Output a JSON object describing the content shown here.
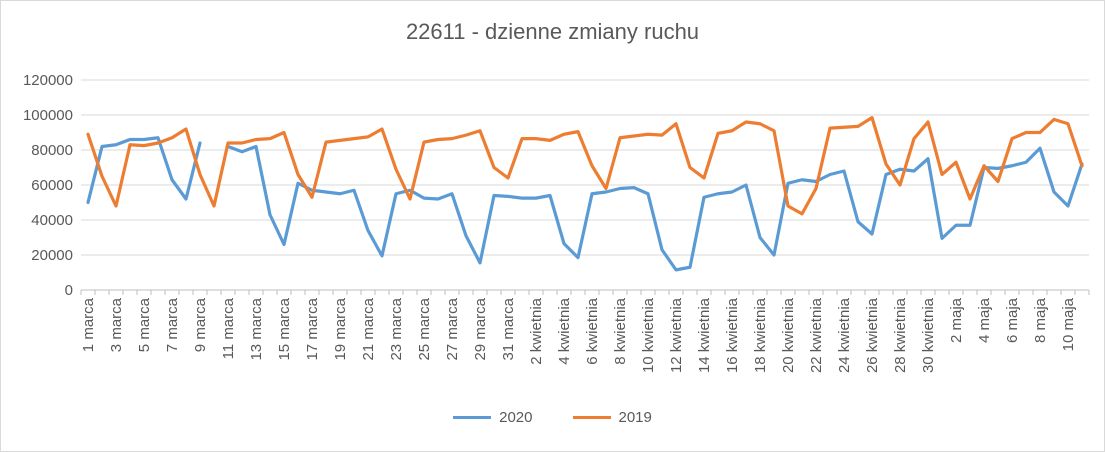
{
  "chart_data": {
    "type": "line",
    "title": "22611 - dzienne zmiany ruchu",
    "xlabel": "",
    "ylabel": "",
    "ylim": [
      0,
      120000
    ],
    "yticks": [
      "0",
      "20000",
      "40000",
      "60000",
      "80000",
      "100000",
      "120000"
    ],
    "grid": true,
    "legend_position": "bottom",
    "categories": [
      "1 marca",
      "2 marca",
      "3 marca",
      "4 marca",
      "5 marca",
      "6 marca",
      "7 marca",
      "8 marca",
      "9 marca",
      "10 marca",
      "11 marca",
      "12 marca",
      "13 marca",
      "14 marca",
      "15 marca",
      "16 marca",
      "17 marca",
      "18 marca",
      "19 marca",
      "20 marca",
      "21 marca",
      "22 marca",
      "23 marca",
      "24 marca",
      "25 marca",
      "26 marca",
      "27 marca",
      "28 marca",
      "29 marca",
      "30 marca",
      "31 marca",
      "1 kwietnia",
      "2 kwietnia",
      "3 kwietnia",
      "4 kwietnia",
      "5 kwietnia",
      "6 kwietnia",
      "7 kwietnia",
      "8 kwietnia",
      "9 kwietnia",
      "10 kwietnia",
      "11 kwietnia",
      "12 kwietnia",
      "13 kwietnia",
      "14 kwietnia",
      "15 kwietnia",
      "16 kwietnia",
      "17 kwietnia",
      "18 kwietnia",
      "19 kwietnia",
      "20 kwietnia",
      "21 kwietnia",
      "22 kwietnia",
      "23 kwietnia",
      "24 kwietnia",
      "25 kwietnia",
      "26 kwietnia",
      "27 kwietnia",
      "28 kwietnia",
      "29 kwietnia",
      "30 kwietnia",
      "1 maja",
      "2 maja",
      "3 maja",
      "4 maja",
      "5 maja",
      "6 maja",
      "7 maja",
      "8 maja",
      "9 maja",
      "10 maja",
      "11 maja"
    ],
    "x_tick_labels": [
      "1 marca",
      "3 marca",
      "5 marca",
      "7 marca",
      "9 marca",
      "11 marca",
      "13 marca",
      "15 marca",
      "17 marca",
      "19 marca",
      "21 marca",
      "23 marca",
      "25 marca",
      "27 marca",
      "29 marca",
      "31 marca",
      "2 kwietnia",
      "4 kwietnia",
      "6 kwietnia",
      "8 kwietnia",
      "10 kwietnia",
      "12 kwietnia",
      "14 kwietnia",
      "16 kwietnia",
      "18 kwietnia",
      "20 kwietnia",
      "22 kwietnia",
      "24 kwietnia",
      "26 kwietnia",
      "28 kwietnia",
      "30 kwietnia",
      "2 maja",
      "4 maja",
      "6 maja",
      "8 maja",
      "10 maja"
    ],
    "series": [
      {
        "name": "2020",
        "color": "#5B9BD5",
        "values": [
          50000,
          82000,
          83000,
          86000,
          86000,
          87000,
          63000,
          52000,
          84000,
          null,
          82000,
          79000,
          82000,
          43000,
          26000,
          61000,
          57000,
          56000,
          55000,
          57000,
          34000,
          19500,
          55000,
          57000,
          52500,
          52000,
          55000,
          31000,
          15500,
          54000,
          53500,
          52500,
          52500,
          54000,
          26500,
          18500,
          55000,
          56000,
          58000,
          58500,
          55000,
          23000,
          11500,
          13000,
          53000,
          55000,
          56000,
          60000,
          30000,
          20000,
          61000,
          63000,
          62000,
          66000,
          68000,
          39000,
          32000,
          66000,
          69000,
          68000,
          75000,
          29500,
          37000,
          37000,
          70000,
          69500,
          71000,
          73000,
          81000,
          56000,
          48000,
          72000
        ]
      },
      {
        "name": "2019",
        "color": "#ED7D31",
        "values": [
          89000,
          65000,
          48000,
          83000,
          82500,
          84000,
          87000,
          92000,
          66000,
          48000,
          84000,
          84000,
          86000,
          86500,
          90000,
          66000,
          53000,
          84500,
          85500,
          86500,
          87500,
          92000,
          69000,
          52000,
          84500,
          86000,
          86500,
          88500,
          91000,
          70000,
          64000,
          86500,
          86500,
          85500,
          89000,
          90500,
          71000,
          58000,
          87000,
          88000,
          89000,
          88500,
          95000,
          70000,
          64000,
          89500,
          91000,
          96000,
          95000,
          91000,
          48000,
          43500,
          58000,
          92500,
          93000,
          93500,
          98500,
          72000,
          60000,
          86500,
          96000,
          66000,
          73000,
          52000,
          71000,
          62000,
          86500,
          90000,
          90000,
          97500,
          95000,
          71000
        ]
      }
    ]
  }
}
